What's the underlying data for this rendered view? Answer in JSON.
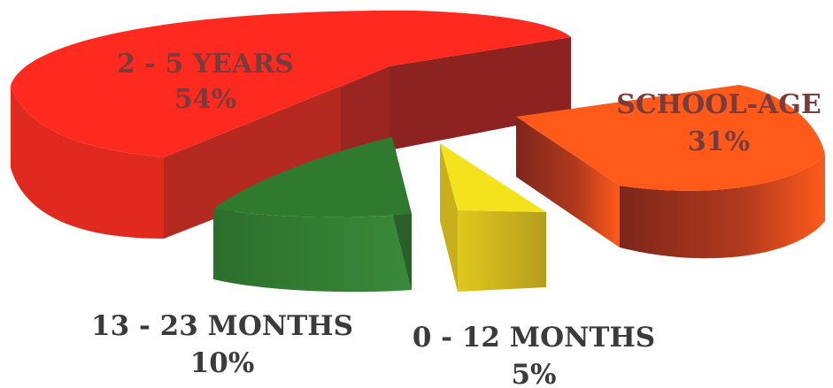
{
  "chart_data": {
    "type": "pie",
    "slices": [
      {
        "label": "2 - 5 YEARS",
        "percent_label": "54%",
        "value": 54,
        "color": "#ff2a1f",
        "side": "#b5281f"
      },
      {
        "label": "SCHOOL-AGE",
        "percent_label": "31%",
        "value": 31,
        "color": "#ff5a1a",
        "side": "#8c2a1c"
      },
      {
        "label": "0 - 12 MONTHS",
        "percent_label": "5%",
        "value": 5,
        "color": "#f4e21c",
        "side": "#c4aa1e"
      },
      {
        "label": "13 - 23 MONTHS",
        "percent_label": "10%",
        "value": 10,
        "color": "#2f7a2f",
        "side": "#2a6a2a"
      }
    ],
    "style": "3d-exploded"
  }
}
